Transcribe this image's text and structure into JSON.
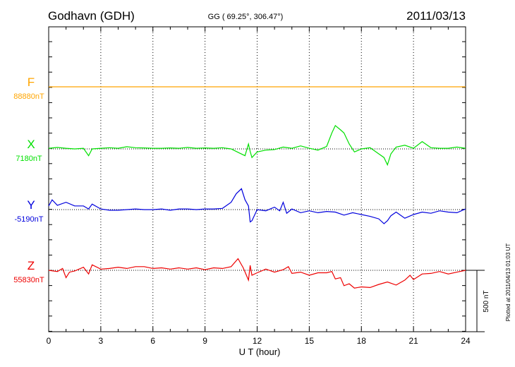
{
  "header": {
    "station": "Godhavn (GDH)",
    "coords": "GG ( 69.25°, 306.47°)",
    "date": "2011/03/13"
  },
  "side_note": "Plotted at 2011/04/13 01:03 UT",
  "scale_label": "500 nT",
  "chart_data": {
    "type": "line",
    "xlabel": "U T (hour)",
    "xlim": [
      0,
      24
    ],
    "x_ticks": [
      "0",
      "3",
      "6",
      "9",
      "12",
      "15",
      "18",
      "21",
      "24"
    ],
    "scale_nT": 500,
    "grid": "vertical dotted every 3 h; dotted baseline per component",
    "series": [
      {
        "name": "F",
        "baseline_label": "88880nT",
        "color": "#ffa500",
        "x": [
          0,
          24
        ],
        "y": [
          0,
          0
        ]
      },
      {
        "name": "X",
        "baseline_label": "7180nT",
        "color": "#00e000",
        "x": [
          0,
          0.5,
          1,
          1.5,
          2,
          2.3,
          2.5,
          3,
          3.5,
          4,
          4.5,
          5,
          5.5,
          6,
          6.5,
          7,
          7.5,
          8,
          8.5,
          9,
          9.5,
          10,
          10.5,
          11,
          11.3,
          11.5,
          11.6,
          11.7,
          12,
          12.5,
          13,
          13.5,
          14,
          14.5,
          15,
          15.5,
          16,
          16.3,
          16.5,
          16.8,
          17,
          17.3,
          17.6,
          18,
          18.5,
          19,
          19.3,
          19.5,
          19.7,
          20,
          20.5,
          21,
          21.5,
          22,
          22.5,
          23,
          23.5,
          24
        ],
        "y": [
          5,
          12,
          5,
          0,
          5,
          -55,
          0,
          5,
          10,
          5,
          18,
          10,
          8,
          5,
          5,
          8,
          5,
          12,
          5,
          8,
          5,
          10,
          0,
          -35,
          -55,
          40,
          -20,
          -70,
          -25,
          -10,
          -5,
          15,
          5,
          25,
          5,
          -10,
          20,
          130,
          190,
          155,
          130,
          40,
          -25,
          0,
          10,
          -40,
          -70,
          -130,
          -40,
          15,
          30,
          5,
          60,
          10,
          5,
          5,
          15,
          5
        ]
      },
      {
        "name": "Y",
        "baseline_label": "-5190nT",
        "color": "#0000dd",
        "x": [
          0,
          0.2,
          0.5,
          1,
          1.5,
          2,
          2.3,
          2.5,
          3,
          3.5,
          4,
          4.5,
          5,
          5.5,
          6,
          6.5,
          7,
          7.5,
          8,
          8.5,
          9,
          9.5,
          10,
          10.5,
          10.8,
          11.1,
          11.3,
          11.5,
          11.6,
          11.7,
          12,
          12.5,
          13,
          13.3,
          13.5,
          13.7,
          14,
          14.5,
          15,
          15.5,
          16,
          16.5,
          17,
          17.5,
          18,
          18.5,
          19,
          19.3,
          19.5,
          19.7,
          20,
          20.5,
          21,
          21.5,
          22,
          22.5,
          23,
          23.5,
          24
        ],
        "y": [
          30,
          80,
          35,
          60,
          30,
          30,
          5,
          45,
          5,
          -5,
          -5,
          0,
          5,
          0,
          0,
          5,
          -5,
          5,
          5,
          0,
          5,
          5,
          10,
          60,
          130,
          170,
          80,
          30,
          -100,
          -90,
          0,
          -10,
          20,
          -10,
          60,
          -30,
          5,
          -25,
          -10,
          -25,
          -15,
          -20,
          -45,
          -25,
          -40,
          -55,
          -75,
          -115,
          -90,
          -50,
          -20,
          -70,
          -40,
          -20,
          -30,
          -10,
          -20,
          -25,
          5
        ]
      },
      {
        "name": "Z",
        "baseline_label": "55830nT",
        "color": "#ee0000",
        "x": [
          0,
          0.5,
          0.8,
          1,
          1.2,
          1.5,
          2,
          2.3,
          2.5,
          3,
          3.5,
          4,
          4.5,
          5,
          5.5,
          6,
          6.5,
          7,
          7.5,
          8,
          8.5,
          9,
          9.5,
          10,
          10.5,
          10.9,
          11.2,
          11.5,
          11.6,
          11.7,
          12,
          12.5,
          13,
          13.5,
          13.8,
          14,
          14.5,
          15,
          15.5,
          16,
          16.3,
          16.5,
          16.8,
          17,
          17.3,
          17.6,
          18,
          18.5,
          19,
          19.5,
          20,
          20.5,
          20.8,
          21,
          21.5,
          22,
          22.5,
          23,
          23.5,
          24
        ],
        "y": [
          0,
          -10,
          15,
          -60,
          -15,
          -5,
          25,
          -30,
          45,
          10,
          15,
          25,
          15,
          30,
          30,
          15,
          20,
          10,
          20,
          10,
          20,
          5,
          20,
          15,
          30,
          95,
          20,
          -80,
          40,
          -40,
          -20,
          10,
          -15,
          5,
          30,
          -25,
          -15,
          -40,
          -20,
          -20,
          -10,
          -70,
          -60,
          -125,
          -110,
          -145,
          -135,
          -140,
          -115,
          -95,
          -120,
          -80,
          -40,
          -75,
          -30,
          -25,
          -10,
          -30,
          -15,
          0
        ]
      }
    ]
  }
}
